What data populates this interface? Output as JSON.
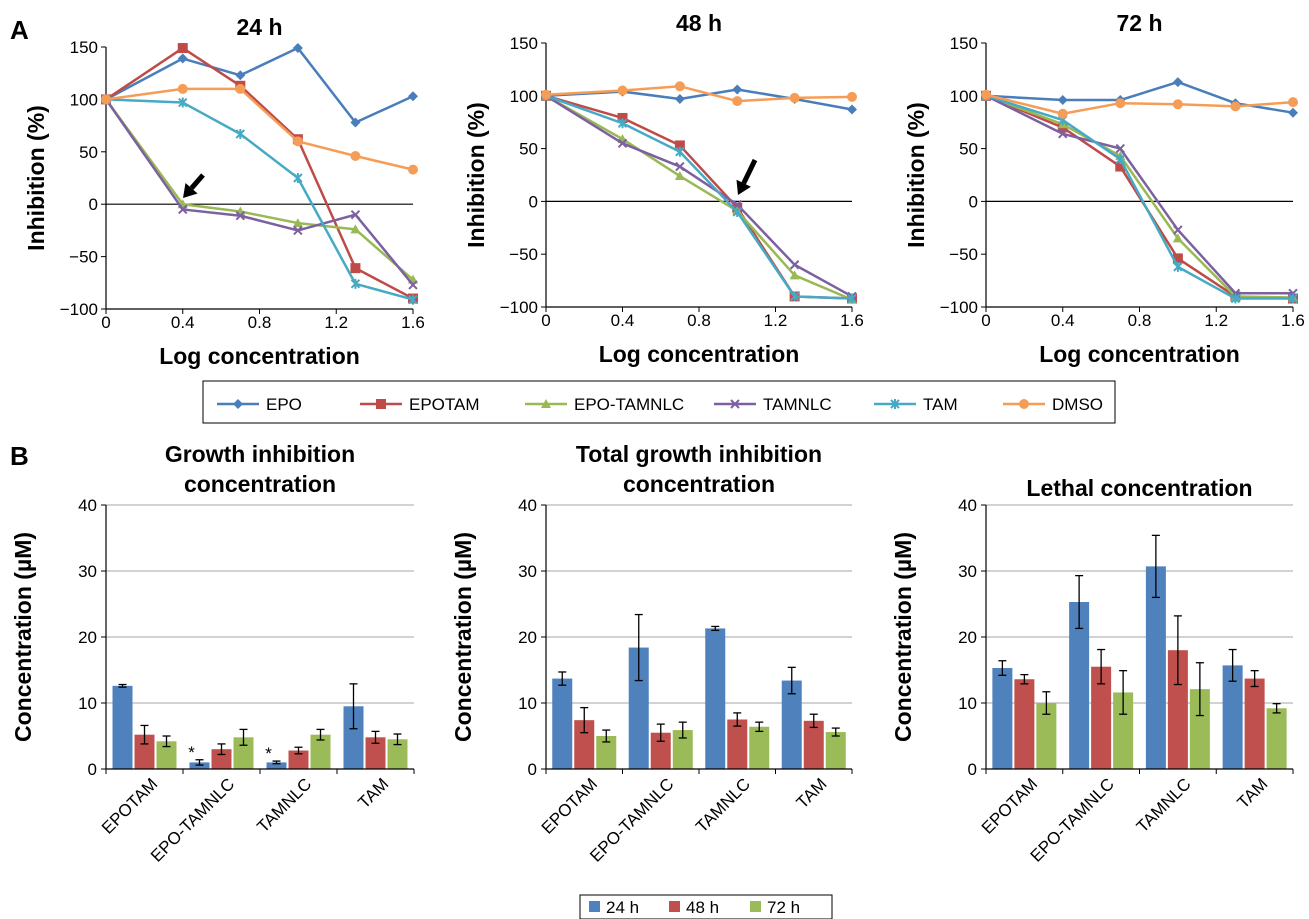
{
  "figure": {
    "panel_a_label": "A",
    "panel_b_label": "B",
    "line_legend_title": "",
    "bar_legend_title": ""
  },
  "chart_data": [
    {
      "type": "line",
      "title": "24 h",
      "xlabel": "Log concentration",
      "ylabel": "Inhibition (%)",
      "xlim": [
        0,
        1.6
      ],
      "ylim": [
        -100,
        150
      ],
      "xticks": [
        "0",
        "0.4",
        "0.8",
        "1.2",
        "1.6"
      ],
      "yticks": [
        "−100",
        "−50",
        "0",
        "50",
        "100",
        "150"
      ],
      "x": [
        0,
        0.4,
        0.7,
        1.0,
        1.3,
        1.6
      ],
      "annotations": [
        {
          "text": "arrow",
          "x": 0.4,
          "y": -3
        }
      ],
      "series": [
        {
          "name": "EPO",
          "color": "#4a7ebb",
          "marker": "diamond",
          "values": [
            100,
            139,
            123,
            149,
            78,
            103
          ]
        },
        {
          "name": "EPOTAM",
          "color": "#be4b48",
          "marker": "square",
          "values": [
            100,
            149,
            113,
            62,
            -61,
            -90
          ]
        },
        {
          "name": "EPO-TAMNLC",
          "color": "#98b954",
          "marker": "triangle",
          "values": [
            100,
            0,
            -7,
            -18,
            -24,
            -72
          ]
        },
        {
          "name": "TAMNLC",
          "color": "#7d60a0",
          "marker": "x",
          "values": [
            100,
            -5,
            -11,
            -25,
            -10,
            -77
          ]
        },
        {
          "name": "TAM",
          "color": "#46aac5",
          "marker": "star",
          "values": [
            100,
            97,
            67,
            25,
            -76,
            -91
          ]
        },
        {
          "name": "DMSO",
          "color": "#f59d56",
          "marker": "circle",
          "values": [
            100,
            110,
            110,
            60,
            46,
            33
          ]
        }
      ]
    },
    {
      "type": "line",
      "title": "48 h",
      "xlabel": "Log concentration",
      "ylabel": "Inhibition (%)",
      "xlim": [
        0,
        1.6
      ],
      "ylim": [
        -100,
        150
      ],
      "xticks": [
        "0",
        "0.4",
        "0.8",
        "1.2",
        "1.6"
      ],
      "yticks": [
        "−100",
        "−50",
        "0",
        "50",
        "100",
        "150"
      ],
      "x": [
        0,
        0.4,
        0.7,
        1.0,
        1.3,
        1.6
      ],
      "annotations": [
        {
          "text": "arrow",
          "x": 1.0,
          "y": 0
        }
      ],
      "series": [
        {
          "name": "EPO",
          "color": "#4a7ebb",
          "marker": "diamond",
          "values": [
            100,
            104,
            97,
            106,
            97,
            87
          ]
        },
        {
          "name": "EPOTAM",
          "color": "#be4b48",
          "marker": "square",
          "values": [
            100,
            79,
            53,
            -6,
            -90,
            -92
          ]
        },
        {
          "name": "EPO-TAMNLC",
          "color": "#98b954",
          "marker": "triangle",
          "values": [
            100,
            59,
            24,
            -9,
            -70,
            -93
          ]
        },
        {
          "name": "TAMNLC",
          "color": "#7d60a0",
          "marker": "x",
          "values": [
            100,
            55,
            33,
            -3,
            -60,
            -90
          ]
        },
        {
          "name": "TAM",
          "color": "#46aac5",
          "marker": "star",
          "values": [
            100,
            74,
            47,
            -10,
            -90,
            -92
          ]
        },
        {
          "name": "DMSO",
          "color": "#f59d56",
          "marker": "circle",
          "values": [
            101,
            105,
            109,
            95,
            98,
            99
          ]
        }
      ]
    },
    {
      "type": "line",
      "title": "72 h",
      "xlabel": "Log concentration",
      "ylabel": "Inhibition (%)",
      "xlim": [
        0,
        1.6
      ],
      "ylim": [
        -100,
        150
      ],
      "xticks": [
        "0",
        "0.4",
        "0.8",
        "1.2",
        "1.6"
      ],
      "yticks": [
        "−100",
        "−50",
        "0",
        "50",
        "100",
        "150"
      ],
      "x": [
        0,
        0.4,
        0.7,
        1.0,
        1.3,
        1.6
      ],
      "series": [
        {
          "name": "EPO",
          "color": "#4a7ebb",
          "marker": "diamond",
          "values": [
            100,
            96,
            96,
            113,
            93,
            84
          ]
        },
        {
          "name": "EPOTAM",
          "color": "#be4b48",
          "marker": "square",
          "values": [
            100,
            70,
            33,
            -54,
            -90,
            -92
          ]
        },
        {
          "name": "EPO-TAMNLC",
          "color": "#98b954",
          "marker": "triangle",
          "values": [
            100,
            73,
            43,
            -35,
            -90,
            -91
          ]
        },
        {
          "name": "TAMNLC",
          "color": "#7d60a0",
          "marker": "x",
          "values": [
            100,
            64,
            50,
            -27,
            -87,
            -87
          ]
        },
        {
          "name": "TAM",
          "color": "#46aac5",
          "marker": "star",
          "values": [
            100,
            77,
            40,
            -62,
            -92,
            -92
          ]
        },
        {
          "name": "DMSO",
          "color": "#f59d56",
          "marker": "circle",
          "values": [
            101,
            83,
            93,
            92,
            90,
            94
          ]
        }
      ]
    },
    {
      "type": "bar",
      "title": "Growth inhibition concentration",
      "title_lines": [
        "Growth inhibition",
        "concentration"
      ],
      "ylabel": "Concentration (µM)",
      "ylim": [
        0,
        40
      ],
      "yticks": [
        "0",
        "10",
        "20",
        "30",
        "40"
      ],
      "categories": [
        "EPOTAM",
        "EPO-TAMNLC",
        "TAMNLC",
        "TAM"
      ],
      "series": [
        {
          "name": "24 h",
          "color": "#4f81bd",
          "values": [
            12.6,
            1.0,
            1.0,
            9.5
          ],
          "errors": [
            0.2,
            0.4,
            0.2,
            3.4
          ]
        },
        {
          "name": "48 h",
          "color": "#c0504d",
          "values": [
            5.2,
            3.0,
            2.8,
            4.8
          ],
          "errors": [
            1.4,
            0.8,
            0.5,
            0.9
          ]
        },
        {
          "name": "72 h",
          "color": "#9bbb59",
          "values": [
            4.2,
            4.8,
            5.2,
            4.5
          ],
          "errors": [
            0.8,
            1.2,
            0.8,
            0.8
          ]
        }
      ],
      "annotations": [
        {
          "text": "*",
          "category": "EPO-TAMNLC"
        },
        {
          "text": "*",
          "category": "TAMNLC"
        }
      ]
    },
    {
      "type": "bar",
      "title": "Total growth inhibition concentration",
      "title_lines": [
        "Total growth inhibition",
        "concentration"
      ],
      "ylabel": "Concentration (µM)",
      "ylim": [
        0,
        40
      ],
      "yticks": [
        "0",
        "10",
        "20",
        "30",
        "40"
      ],
      "categories": [
        "EPOTAM",
        "EPO-TAMNLC",
        "TAMNLC",
        "TAM"
      ],
      "series": [
        {
          "name": "24 h",
          "color": "#4f81bd",
          "values": [
            13.7,
            18.4,
            21.3,
            13.4
          ],
          "errors": [
            1.0,
            5.0,
            0.3,
            2.0
          ]
        },
        {
          "name": "48 h",
          "color": "#c0504d",
          "values": [
            7.4,
            5.5,
            7.5,
            7.3
          ],
          "errors": [
            1.9,
            1.3,
            1.0,
            1.0
          ]
        },
        {
          "name": "72 h",
          "color": "#9bbb59",
          "values": [
            5.0,
            5.9,
            6.4,
            5.6
          ],
          "errors": [
            0.9,
            1.2,
            0.7,
            0.6
          ]
        }
      ]
    },
    {
      "type": "bar",
      "title": "Lethal concentration",
      "title_lines": [
        "Lethal concentration"
      ],
      "ylabel": "Concentration (µM)",
      "ylim": [
        0,
        40
      ],
      "yticks": [
        "0",
        "10",
        "20",
        "30",
        "40"
      ],
      "categories": [
        "EPOTAM",
        "EPO-TAMNLC",
        "TAMNLC",
        "TAM"
      ],
      "series": [
        {
          "name": "24 h",
          "color": "#4f81bd",
          "values": [
            15.3,
            25.3,
            30.7,
            15.7
          ],
          "errors": [
            1.1,
            4.0,
            4.7,
            2.4
          ]
        },
        {
          "name": "48 h",
          "color": "#c0504d",
          "values": [
            13.6,
            15.5,
            18.0,
            13.7
          ],
          "errors": [
            0.7,
            2.6,
            5.2,
            1.2
          ]
        },
        {
          "name": "72 h",
          "color": "#9bbb59",
          "values": [
            10.0,
            11.6,
            12.1,
            9.2
          ],
          "errors": [
            1.7,
            3.3,
            4.0,
            0.7
          ]
        }
      ]
    }
  ]
}
